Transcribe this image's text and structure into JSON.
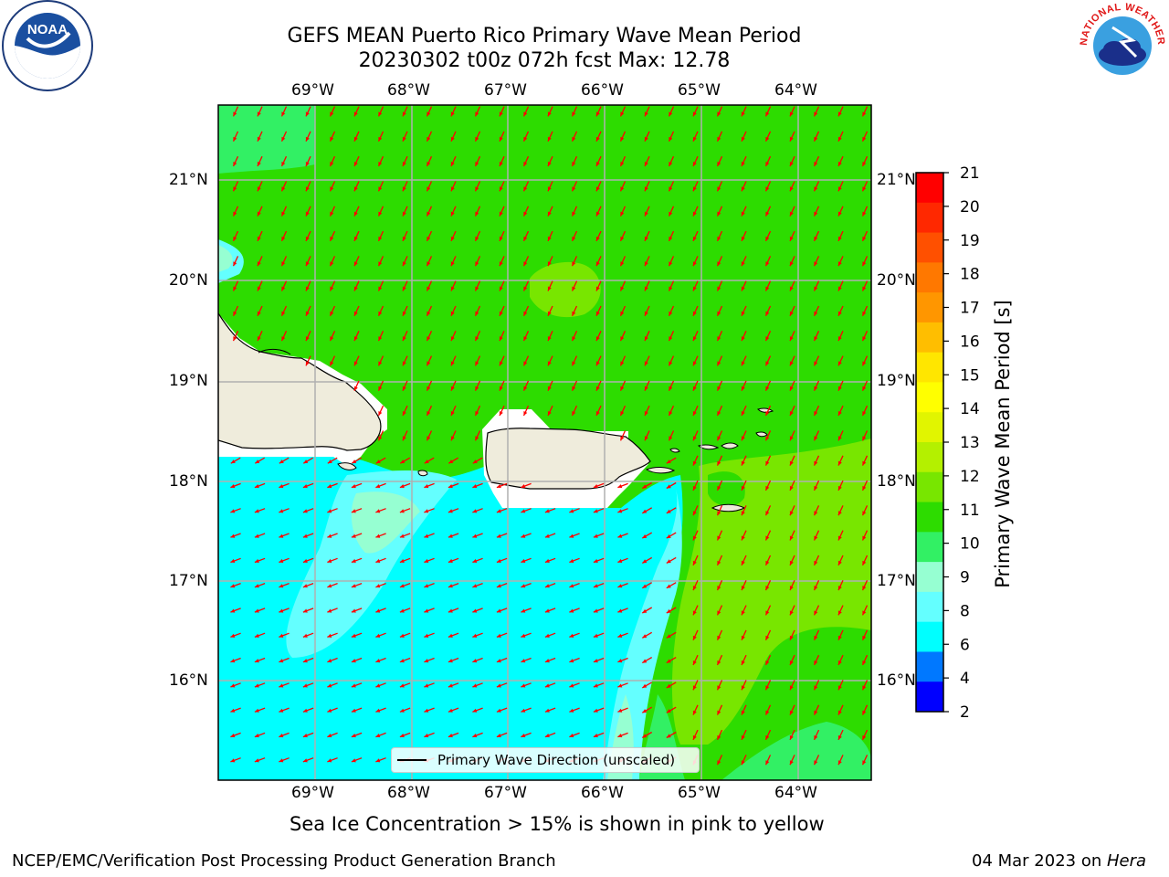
{
  "title": {
    "line1": "GEFS MEAN Puerto Rico Primary Wave Mean Period",
    "line2": "20230302 t00z 072h fcst   Max: 12.78"
  },
  "map": {
    "lon_labels": [
      "69°W",
      "68°W",
      "67°W",
      "66°W",
      "65°W",
      "64°W"
    ],
    "lat_labels": [
      "21°N",
      "20°N",
      "19°N",
      "18°N",
      "17°N",
      "16°N"
    ],
    "legend_label": "Primary Wave Direction (unscaled)",
    "arrow_color": "#ff0000"
  },
  "colorbar": {
    "label": "Primary Wave Mean Period [s]",
    "ticks": [
      "21",
      "20",
      "19",
      "18",
      "17",
      "16",
      "15",
      "14",
      "13",
      "12",
      "11",
      "10",
      "9",
      "8",
      "6",
      "4",
      "2"
    ],
    "colors": [
      "#ff0000",
      "#ff2800",
      "#ff5000",
      "#ff7800",
      "#ff9600",
      "#ffbe00",
      "#ffe600",
      "#ffff00",
      "#e1f500",
      "#b4f000",
      "#78e600",
      "#2ddc00",
      "#32f064",
      "#96ffd2",
      "#64ffff",
      "#00ffff",
      "#0078ff",
      "#0000ff"
    ]
  },
  "logos": {
    "noaa_text": "NOAA",
    "nws_text": "NATIONAL WEATHER SERVICE"
  },
  "note": "Sea Ice Concentration > 15% is shown in pink to yellow",
  "footer": {
    "left": "NCEP/EMC/Verification Post Processing Product Generation Branch",
    "right_prefix": "04 Mar 2023 on ",
    "right_machine": "Hera"
  }
}
